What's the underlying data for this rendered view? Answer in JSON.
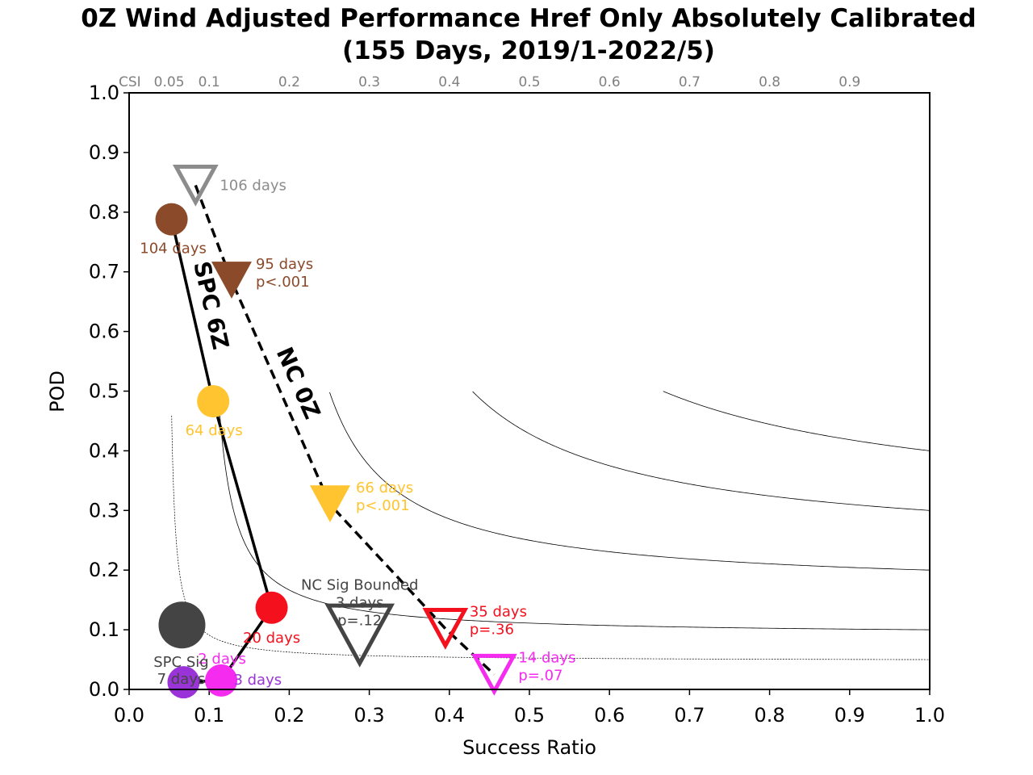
{
  "chart_data": {
    "type": "scatter",
    "title_line1": "0Z Wind Adjusted Performance Href Only Absolutely Calibrated",
    "title_line2": "(155 Days, 2019/1-2022/5)",
    "xlabel": "Success Ratio",
    "ylabel": "POD",
    "xlim": [
      0,
      1
    ],
    "ylim": [
      0,
      1
    ],
    "x_ticks": [
      "0.0",
      "0.1",
      "0.2",
      "0.3",
      "0.4",
      "0.5",
      "0.6",
      "0.7",
      "0.8",
      "0.9",
      "1.0"
    ],
    "y_ticks": [
      "0.0",
      "0.1",
      "0.2",
      "0.3",
      "0.4",
      "0.5",
      "0.6",
      "0.7",
      "0.8",
      "0.9",
      "1.0"
    ],
    "csi_contours": {
      "label": "CSI",
      "values": [
        0.05,
        0.1,
        0.2,
        0.3,
        0.4,
        0.5,
        0.6,
        0.7,
        0.8,
        0.9
      ],
      "tick_labels": [
        "0.05",
        "0.1",
        "0.2",
        "0.3",
        "0.4",
        "0.5",
        "0.6",
        "0.7",
        "0.8",
        "0.9"
      ]
    },
    "series": [
      {
        "name": "SPC 6Z",
        "marker": "circle",
        "line": "solid",
        "points": [
          {
            "x": 0.053,
            "y": 0.788,
            "color": "#8B4A2A",
            "label": "104 days"
          },
          {
            "x": 0.105,
            "y": 0.483,
            "color": "#FFC42F",
            "label": "64 days"
          },
          {
            "x": 0.178,
            "y": 0.137,
            "color": "#F5101E",
            "label": "20 days"
          },
          {
            "x": 0.115,
            "y": 0.015,
            "color": "#F52BF0",
            "label": "2 days"
          },
          {
            "x": 0.068,
            "y": 0.012,
            "color": "#9B34D8",
            "label": "3 days"
          }
        ]
      },
      {
        "name": "NC 0Z",
        "marker": "triangle-down",
        "line": "dashed",
        "points": [
          {
            "x": 0.083,
            "y": 0.845,
            "color": "#8C8C8C",
            "label": "106 days",
            "hollow": true
          },
          {
            "x": 0.128,
            "y": 0.685,
            "color": "#8B4A2A",
            "label": "95 days",
            "p": "p<.001"
          },
          {
            "x": 0.251,
            "y": 0.31,
            "color": "#FFC42F",
            "label": "66 days",
            "p": "p<.001"
          },
          {
            "x": 0.395,
            "y": 0.102,
            "color": "#F5101E",
            "label": "35 days",
            "p": "p=.36",
            "hollow": true
          },
          {
            "x": 0.456,
            "y": 0.025,
            "color": "#F52BF0",
            "label": "14 days",
            "p": "p=.07",
            "hollow": true
          }
        ]
      }
    ],
    "sig_points": [
      {
        "name": "SPC Sig",
        "days": "7 days",
        "x": 0.066,
        "y": 0.108,
        "color": "#444444",
        "marker": "circle"
      },
      {
        "name": "NC Sig Bounded",
        "days": "3 days",
        "p": "p=.12",
        "x": 0.288,
        "y": 0.09,
        "color": "#444444",
        "marker": "triangle-down",
        "hollow": true
      }
    ],
    "grid": false
  }
}
